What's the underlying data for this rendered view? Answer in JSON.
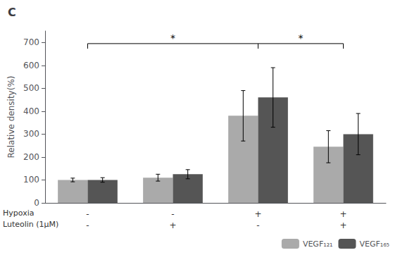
{
  "chart_data": {
    "type": "bar",
    "title": "C",
    "ylabel": "Relative density(%)",
    "category_rows": [
      {
        "label": "Hypoxia",
        "labels": [
          "-",
          "-",
          "+",
          "+"
        ]
      },
      {
        "label": "Luteolin (1μM)",
        "labels": [
          "-",
          "+",
          "-",
          "+"
        ]
      }
    ],
    "series": [
      {
        "name": "VEGF₁₂₁",
        "color": "#aaaaaa",
        "values": [
          100,
          110,
          380,
          245
        ],
        "errors": [
          8,
          15,
          110,
          70
        ]
      },
      {
        "name": "VEGF₁₆₅",
        "color": "#555555",
        "values": [
          100,
          125,
          460,
          300
        ],
        "errors": [
          10,
          20,
          130,
          90
        ]
      }
    ],
    "annotations": [
      {
        "text": "*",
        "x": [
          0,
          2
        ],
        "y": 695,
        "drop": 22
      },
      {
        "text": "*",
        "x": [
          2,
          3
        ],
        "y": 695,
        "drop": 22
      }
    ],
    "ylim": [
      0,
      750
    ],
    "yticks": [
      0,
      100,
      200,
      300,
      400,
      500,
      600,
      700
    ],
    "grid": false,
    "legend": "lower right"
  }
}
